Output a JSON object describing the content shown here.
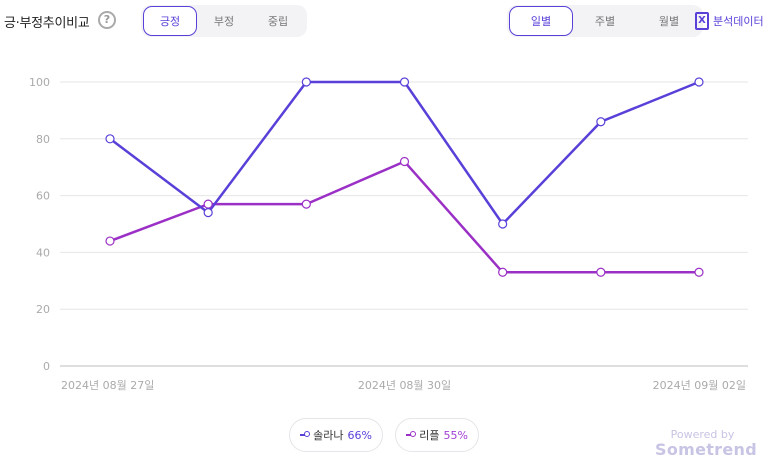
{
  "header": {
    "title": "긍·부정추이비교",
    "help_icon": "?",
    "sentiment_tabs": [
      {
        "label": "긍정",
        "active": true
      },
      {
        "label": "부정",
        "active": false
      },
      {
        "label": "중립",
        "active": false
      }
    ],
    "period_tabs": [
      {
        "label": "일별",
        "active": true
      },
      {
        "label": "주별",
        "active": false
      },
      {
        "label": "월별",
        "active": false
      }
    ],
    "export_label": "분석데이터",
    "export_icon": "X"
  },
  "chart_data": {
    "type": "line",
    "x": [
      "2024-08-27",
      "2024-08-28",
      "2024-08-29",
      "2024-08-30",
      "2024-08-31",
      "2024-09-01",
      "2024-09-02"
    ],
    "x_tick_labels": [
      "2024년 08월 27일",
      "2024년 08월 30일",
      "2024년 09월 02일"
    ],
    "y_ticks": [
      0,
      20,
      40,
      60,
      80,
      100
    ],
    "ylim": [
      0,
      100
    ],
    "grid": true,
    "series": [
      {
        "name": "솔라나",
        "values": [
          80,
          54,
          100,
          100,
          50,
          86,
          100
        ],
        "color": "#5a40d8"
      },
      {
        "name": "리플",
        "values": [
          44,
          57,
          57,
          72,
          33,
          33,
          33
        ],
        "color": "#9b30c6"
      }
    ]
  },
  "legend": [
    {
      "name": "솔라나",
      "pct": "66%",
      "color": "#5a40d8"
    },
    {
      "name": "리플",
      "pct": "55%",
      "color": "#9b30c6"
    }
  ],
  "branding": {
    "powered_by": "Powered by",
    "name": "Sometrend"
  }
}
